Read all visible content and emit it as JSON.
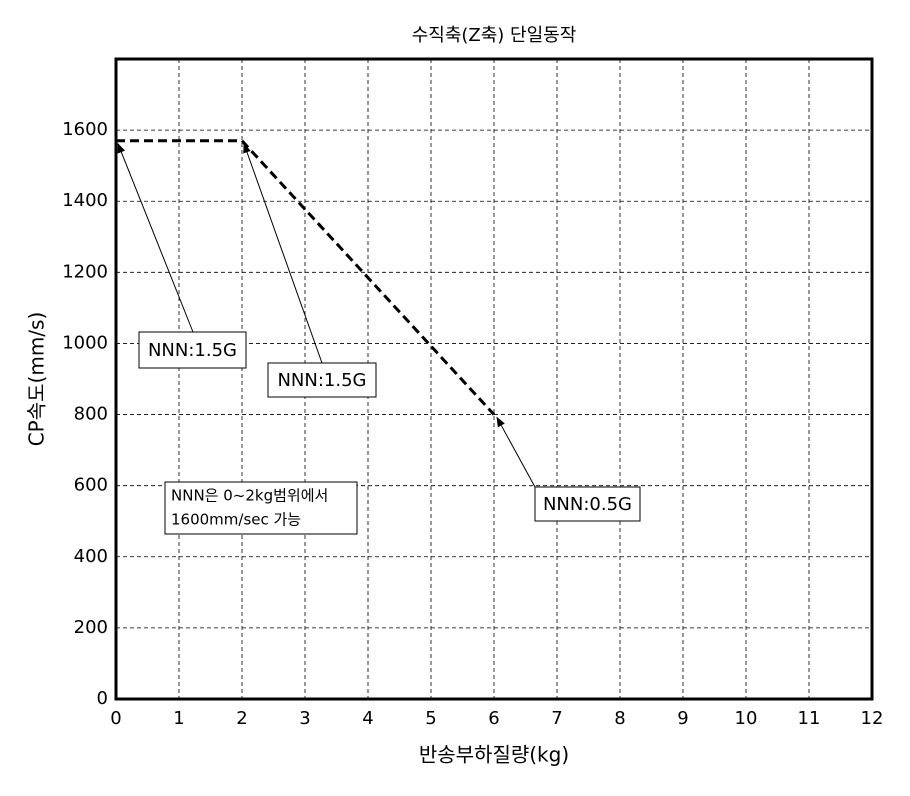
{
  "chart_data": {
    "type": "line",
    "title": "수직축(Z축) 단일동작",
    "x_label": "반송부하질량(kg)",
    "y_label": "CP속도(mm/s)",
    "x": [
      0,
      2,
      6
    ],
    "series": [
      {
        "name": "CP속도",
        "color": "#000000",
        "values": [
          1570,
          1570,
          800
        ]
      }
    ],
    "xlim": [
      0,
      12
    ],
    "xticks": [
      0,
      1,
      2,
      3,
      4,
      5,
      6,
      7,
      8,
      9,
      10,
      11,
      12
    ],
    "ylim": [
      0,
      1800
    ],
    "yticks": [
      0,
      200,
      400,
      600,
      800,
      1000,
      1200,
      1400,
      1600
    ],
    "grid": true,
    "annotations": [
      "NNN:1.5G",
      "NNN:1.5G",
      "NNN:0.5G"
    ],
    "note": [
      "NNN은 0~2kg범위에서",
      "1600mm/sec 가능"
    ]
  }
}
